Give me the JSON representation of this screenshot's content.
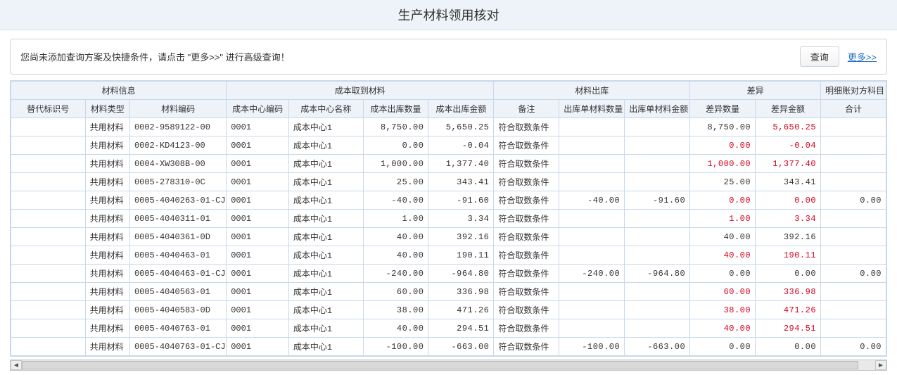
{
  "header": {
    "title": "生产材料领用核对"
  },
  "filter": {
    "hint": "您尚未添加查询方案及快捷条件，请点击 \"更多>>\" 进行高级查询！",
    "query_label": "查询",
    "more_label": "更多>>"
  },
  "columns": {
    "group_material_info": "材料信息",
    "group_cost_fetch": "成本取到材料",
    "group_material_out": "材料出库",
    "group_diff": "差异",
    "group_detail_opp": "明细账对方科目",
    "sub_flag": "替代标识号",
    "material_type": "材料类型",
    "material_code": "材料编码",
    "cost_center_code": "成本中心编码",
    "cost_center_name": "成本中心名称",
    "cost_out_qty": "成本出库数量",
    "cost_out_amt": "成本出库金额",
    "remark": "备注",
    "out_qty": "出库单材料数量",
    "out_amt": "出库单材料金额",
    "diff_qty": "差异数量",
    "diff_amt": "差异金额",
    "total": "合计"
  },
  "rows": [
    [
      "",
      "共用材料",
      "0002-9589122-00",
      "0001",
      "成本中心1",
      "8,750.00",
      "5,650.25",
      "符合取数条件",
      "",
      "",
      "8,750.00",
      "5,650.25",
      "",
      [
        false,
        false,
        false,
        false,
        false,
        false,
        false,
        false,
        false,
        false,
        false,
        true,
        false
      ]
    ],
    [
      "",
      "共用材料",
      "0002-KD4123-00",
      "0001",
      "成本中心1",
      "0.00",
      "-0.04",
      "符合取数条件",
      "",
      "",
      "0.00",
      "-0.04",
      "",
      [
        false,
        false,
        false,
        false,
        false,
        false,
        false,
        false,
        false,
        false,
        true,
        true,
        false
      ]
    ],
    [
      "",
      "共用材料",
      "0004-XW308B-00",
      "0001",
      "成本中心1",
      "1,000.00",
      "1,377.40",
      "符合取数条件",
      "",
      "",
      "1,000.00",
      "1,377.40",
      "",
      [
        false,
        false,
        false,
        false,
        false,
        false,
        false,
        false,
        false,
        false,
        true,
        true,
        false
      ]
    ],
    [
      "",
      "共用材料",
      "0005-278310-0C",
      "0001",
      "成本中心1",
      "25.00",
      "343.41",
      "符合取数条件",
      "",
      "",
      "25.00",
      "343.41",
      "",
      [
        false,
        false,
        false,
        false,
        false,
        false,
        false,
        false,
        false,
        false,
        false,
        false,
        false
      ]
    ],
    [
      "",
      "共用材料",
      "0005-4040263-01-CJ",
      "0001",
      "成本中心1",
      "-40.00",
      "-91.60",
      "符合取数条件",
      "-40.00",
      "-91.60",
      "0.00",
      "0.00",
      "0.00",
      [
        false,
        false,
        false,
        false,
        false,
        false,
        false,
        false,
        false,
        false,
        true,
        true,
        false
      ]
    ],
    [
      "",
      "共用材料",
      "0005-4040311-01",
      "0001",
      "成本中心1",
      "1.00",
      "3.34",
      "符合取数条件",
      "",
      "",
      "1.00",
      "3.34",
      "",
      [
        false,
        false,
        false,
        false,
        false,
        false,
        false,
        false,
        false,
        false,
        true,
        true,
        false
      ]
    ],
    [
      "",
      "共用材料",
      "0005-4040361-0D",
      "0001",
      "成本中心1",
      "40.00",
      "392.16",
      "符合取数条件",
      "",
      "",
      "40.00",
      "392.16",
      "",
      [
        false,
        false,
        false,
        false,
        false,
        false,
        false,
        false,
        false,
        false,
        false,
        false,
        false
      ]
    ],
    [
      "",
      "共用材料",
      "0005-4040463-01",
      "0001",
      "成本中心1",
      "40.00",
      "190.11",
      "符合取数条件",
      "",
      "",
      "40.00",
      "190.11",
      "",
      [
        false,
        false,
        false,
        false,
        false,
        false,
        false,
        false,
        false,
        false,
        true,
        true,
        false
      ]
    ],
    [
      "",
      "共用材料",
      "0005-4040463-01-CJ",
      "0001",
      "成本中心1",
      "-240.00",
      "-964.80",
      "符合取数条件",
      "-240.00",
      "-964.80",
      "0.00",
      "0.00",
      "0.00",
      [
        false,
        false,
        false,
        false,
        false,
        false,
        false,
        false,
        false,
        false,
        false,
        false,
        false
      ]
    ],
    [
      "",
      "共用材料",
      "0005-4040563-01",
      "0001",
      "成本中心1",
      "60.00",
      "336.98",
      "符合取数条件",
      "",
      "",
      "60.00",
      "336.98",
      "",
      [
        false,
        false,
        false,
        false,
        false,
        false,
        false,
        false,
        false,
        false,
        true,
        true,
        false
      ]
    ],
    [
      "",
      "共用材料",
      "0005-4040583-0D",
      "0001",
      "成本中心1",
      "38.00",
      "471.26",
      "符合取数条件",
      "",
      "",
      "38.00",
      "471.26",
      "",
      [
        false,
        false,
        false,
        false,
        false,
        false,
        false,
        false,
        false,
        false,
        true,
        true,
        false
      ]
    ],
    [
      "",
      "共用材料",
      "0005-4040763-01",
      "0001",
      "成本中心1",
      "40.00",
      "294.51",
      "符合取数条件",
      "",
      "",
      "40.00",
      "294.51",
      "",
      [
        false,
        false,
        false,
        false,
        false,
        false,
        false,
        false,
        false,
        false,
        true,
        true,
        false
      ]
    ],
    [
      "",
      "共用材料",
      "0005-4040763-01-CJ",
      "0001",
      "成本中心1",
      "-100.00",
      "-663.00",
      "符合取数条件",
      "-100.00",
      "-663.00",
      "0.00",
      "0.00",
      "0.00",
      [
        false,
        false,
        false,
        false,
        false,
        false,
        false,
        false,
        false,
        false,
        false,
        false,
        false
      ]
    ]
  ],
  "numeric_cols": [
    5,
    6,
    8,
    9,
    10,
    11,
    12
  ],
  "colors": {
    "header_bg": "#eef3fa",
    "border": "#c8d8ea",
    "red_text": "#d6001c",
    "link": "#1d6fc5"
  },
  "scroll": {
    "thumb_left_pct": 0,
    "thumb_width_pct": 98
  }
}
